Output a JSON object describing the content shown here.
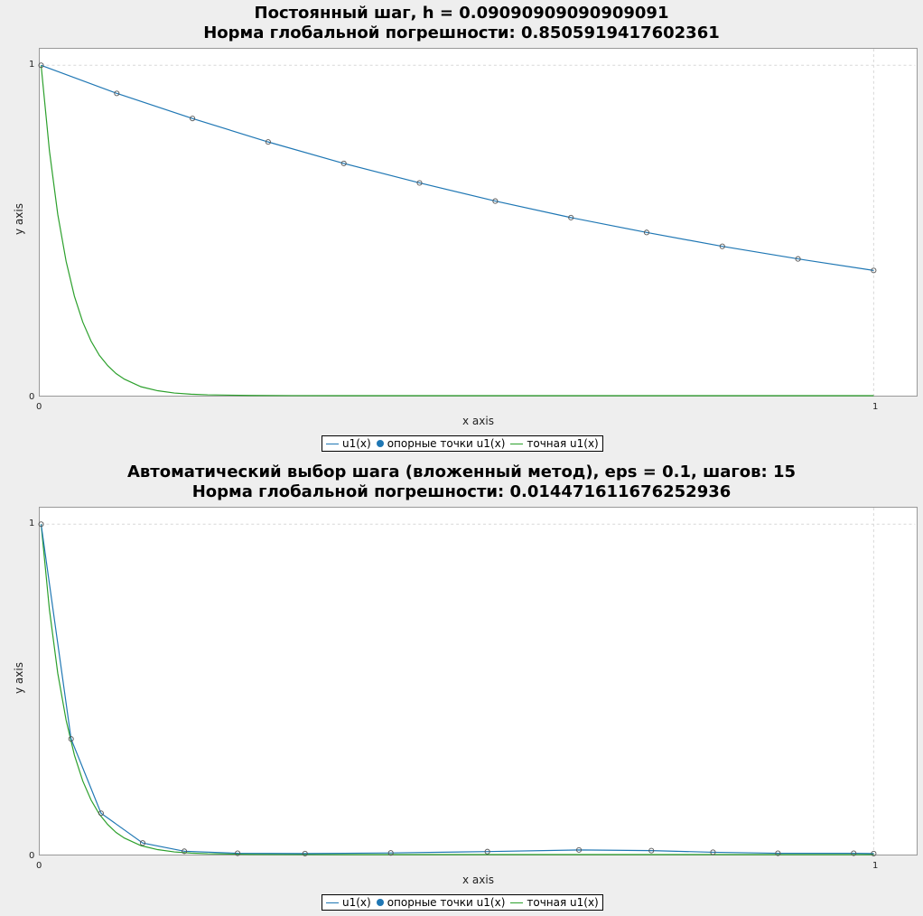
{
  "colors": {
    "numeric": "#1f77b4",
    "exact": "#2ca02c",
    "grid": "#d8d8d8"
  },
  "chart_data": [
    {
      "type": "line",
      "title": "Постоянный шаг, h = 0.09090909090909091",
      "subtitle": "Норма глобальной погрешности: 0.8505919417602361",
      "xlabel": "x axis",
      "ylabel": "y axis",
      "xlim": [
        0,
        1.05
      ],
      "ylim": [
        0,
        1.05
      ],
      "x_ticks": [
        "0",
        "1"
      ],
      "y_ticks": [
        "0",
        "1"
      ],
      "grid": true,
      "legend_placement": "bottom-center",
      "legend": [
        "u1(x)",
        "опорные точки u1(x)",
        "точная u1(x)"
      ],
      "series": [
        {
          "name": "u1(x)",
          "x": [
            0,
            0.0909,
            0.1818,
            0.2727,
            0.3636,
            0.4545,
            0.5455,
            0.6364,
            0.7273,
            0.8182,
            0.9091,
            1.0
          ],
          "y": [
            1.0,
            0.915,
            0.839,
            0.768,
            0.703,
            0.644,
            0.589,
            0.539,
            0.494,
            0.452,
            0.414,
            0.379
          ]
        },
        {
          "name": "опорные точки u1(x)",
          "x": [
            0,
            0.0909,
            0.1818,
            0.2727,
            0.3636,
            0.4545,
            0.5455,
            0.6364,
            0.7273,
            0.8182,
            0.9091,
            1.0
          ],
          "y": [
            1.0,
            0.915,
            0.839,
            0.768,
            0.703,
            0.644,
            0.589,
            0.539,
            0.494,
            0.452,
            0.414,
            0.379
          ]
        },
        {
          "name": "точная u1(x)",
          "x": [
            0,
            0.01,
            0.02,
            0.03,
            0.04,
            0.05,
            0.06,
            0.07,
            0.08,
            0.09,
            0.1,
            0.12,
            0.14,
            0.16,
            0.18,
            0.2,
            0.25,
            0.3,
            0.4,
            0.5,
            0.6,
            0.7,
            0.8,
            0.9,
            1.0
          ],
          "y": [
            1.0,
            0.741,
            0.549,
            0.407,
            0.301,
            0.223,
            0.165,
            0.122,
            0.091,
            0.067,
            0.05,
            0.027,
            0.015,
            0.008,
            0.0045,
            0.0025,
            0.0006,
            0.0001,
            0,
            0,
            0,
            0,
            0,
            0,
            0
          ]
        }
      ]
    },
    {
      "type": "line",
      "title": "Автоматический выбор шага (вложенный метод), eps = 0.1, шагов: 15",
      "subtitle": "Норма глобальной погрешности: 0.014471611676252936",
      "xlabel": "x axis",
      "ylabel": "y axis",
      "xlim": [
        0,
        1.05
      ],
      "ylim": [
        0,
        1.05
      ],
      "x_ticks": [
        "0",
        "1"
      ],
      "y_ticks": [
        "0",
        "1"
      ],
      "grid": true,
      "legend_placement": "bottom-center",
      "legend": [
        "u1(x)",
        "опорные точки u1(x)",
        "точная u1(x)"
      ],
      "series": [
        {
          "name": "u1(x)",
          "x": [
            0,
            0.036,
            0.072,
            0.122,
            0.172,
            0.236,
            0.317,
            0.42,
            0.536,
            0.646,
            0.733,
            0.807,
            0.885,
            0.976,
            1.0
          ],
          "y": [
            1.0,
            0.35,
            0.125,
            0.035,
            0.01,
            0.004,
            0.003,
            0.005,
            0.009,
            0.014,
            0.012,
            0.007,
            0.004,
            0.004,
            0.003
          ]
        },
        {
          "name": "опорные точки u1(x)",
          "x": [
            0,
            0.036,
            0.072,
            0.122,
            0.172,
            0.236,
            0.317,
            0.42,
            0.536,
            0.646,
            0.733,
            0.807,
            0.885,
            0.976,
            1.0
          ],
          "y": [
            1.0,
            0.35,
            0.125,
            0.035,
            0.01,
            0.004,
            0.003,
            0.005,
            0.009,
            0.014,
            0.012,
            0.007,
            0.004,
            0.004,
            0.003
          ]
        },
        {
          "name": "точная u1(x)",
          "x": [
            0,
            0.01,
            0.02,
            0.03,
            0.04,
            0.05,
            0.06,
            0.07,
            0.08,
            0.09,
            0.1,
            0.12,
            0.14,
            0.16,
            0.18,
            0.2,
            0.25,
            0.3,
            0.4,
            0.5,
            0.6,
            0.7,
            0.8,
            0.9,
            1.0
          ],
          "y": [
            1.0,
            0.741,
            0.549,
            0.407,
            0.301,
            0.223,
            0.165,
            0.122,
            0.091,
            0.067,
            0.05,
            0.027,
            0.015,
            0.008,
            0.0045,
            0.0025,
            0.0006,
            0.0001,
            0,
            0,
            0,
            0,
            0,
            0,
            0
          ]
        }
      ]
    }
  ]
}
